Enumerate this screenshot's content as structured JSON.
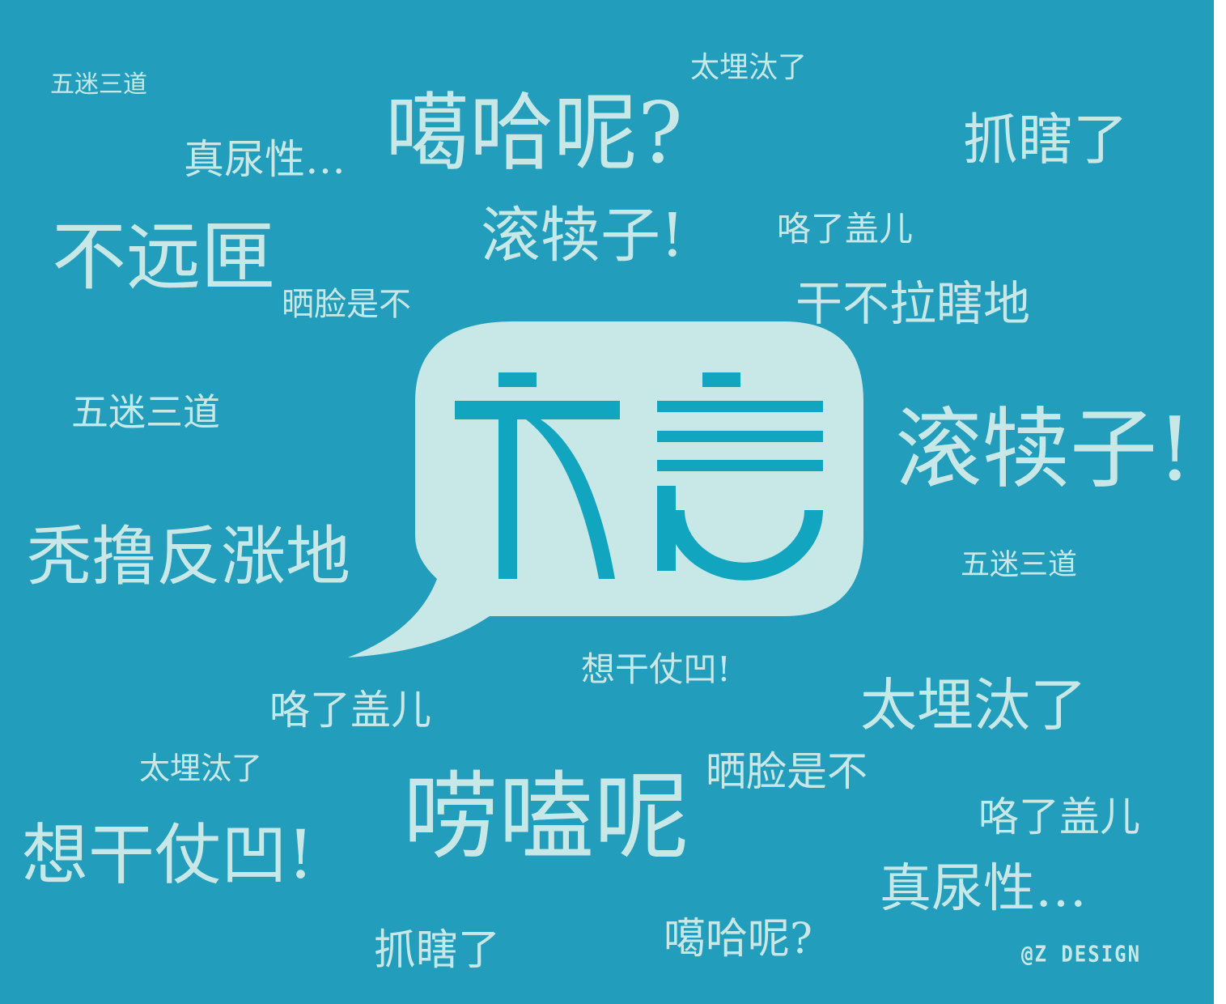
{
  "logo": {
    "text": "方言",
    "bubble_color": "#C8E8E8",
    "glyph_color": "#12A5C0"
  },
  "colors": {
    "background": "#239DBC",
    "text": "#C8E8E8"
  },
  "words": [
    "五迷三道",
    "太埋汰了",
    "噶哈呢?",
    "抓瞎了",
    "真尿性…",
    "滚犊子!",
    "咯了盖儿",
    "不远匣",
    "晒脸是不",
    "干不拉瞎地",
    "五迷三道",
    "滚犊子!",
    "秃撸反涨地",
    "五迷三道",
    "想干仗凹!",
    "咯了盖儿",
    "太埋汰了",
    "太埋汰了",
    "晒脸是不",
    "唠嗑呢",
    "咯了盖儿",
    "想干仗凹!",
    "真尿性…",
    "抓瞎了",
    "噶哈呢?"
  ],
  "credit": "@Z DESIGN"
}
